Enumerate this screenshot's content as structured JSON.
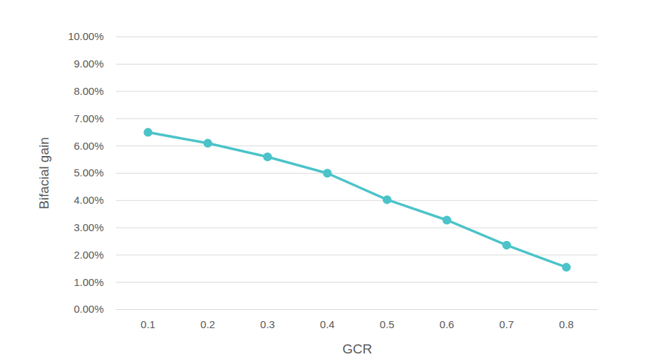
{
  "chart_data": {
    "type": "line",
    "x_label": "GCR",
    "y_label": "Bifacial gain",
    "categories": [
      "0.1",
      "0.2",
      "0.3",
      "0.4",
      "0.5",
      "0.6",
      "0.7",
      "0.8"
    ],
    "series": [
      {
        "name": "Bifacial gain",
        "color": "#4bc3c9",
        "marker": "circle",
        "line_style": "solid",
        "values": [
          6.5,
          6.1,
          5.6,
          5.0,
          4.03,
          3.28,
          2.36,
          1.55
        ]
      }
    ],
    "ylim": [
      0,
      10
    ],
    "yticks": [
      {
        "value": 0,
        "label": "0.00%"
      },
      {
        "value": 1,
        "label": "1.00%"
      },
      {
        "value": 2,
        "label": "2.00%"
      },
      {
        "value": 3,
        "label": "3.00%"
      },
      {
        "value": 4,
        "label": "4.00%"
      },
      {
        "value": 5,
        "label": "5.00%"
      },
      {
        "value": 6,
        "label": "6.00%"
      },
      {
        "value": 7,
        "label": "7.00%"
      },
      {
        "value": 8,
        "label": "8.00%"
      },
      {
        "value": 9,
        "label": "9.00%"
      },
      {
        "value": 10,
        "label": "10.00%"
      }
    ],
    "grid": true
  }
}
